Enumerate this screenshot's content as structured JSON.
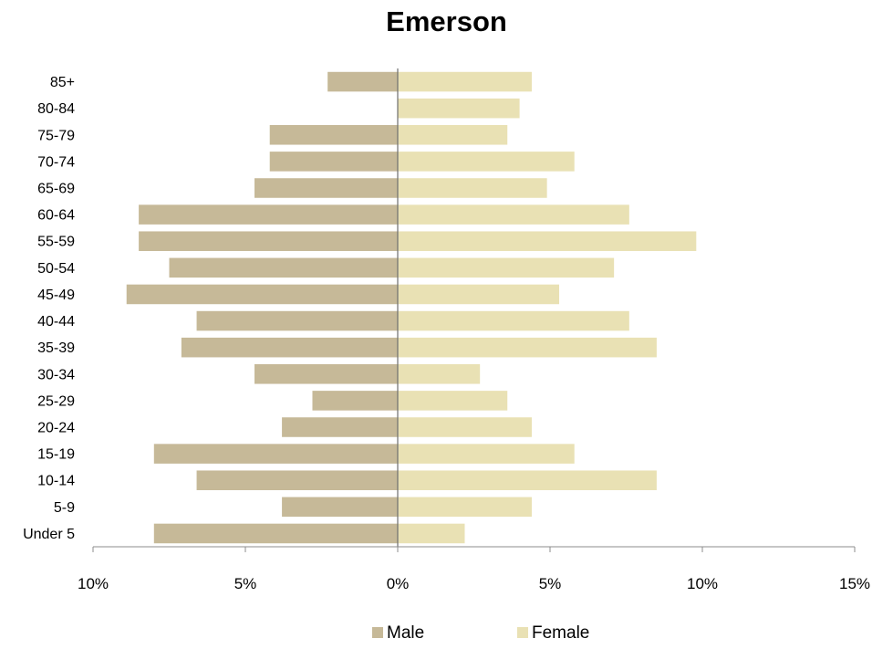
{
  "chart_data": {
    "type": "bar",
    "orientation": "horizontal",
    "title": "Emerson",
    "xlabel": "",
    "ylabel": "",
    "categories": [
      "Under 5",
      "5-9",
      "10-14",
      "15-19",
      "20-24",
      "25-29",
      "30-34",
      "35-39",
      "40-44",
      "45-49",
      "50-54",
      "55-59",
      "60-64",
      "65-69",
      "70-74",
      "75-79",
      "80-84",
      "85+"
    ],
    "series": [
      {
        "name": "Male",
        "color": "#c6b998",
        "direction": "left",
        "values": [
          8.0,
          3.8,
          6.6,
          8.0,
          3.8,
          2.8,
          4.7,
          7.1,
          6.6,
          8.9,
          7.5,
          8.5,
          8.5,
          4.7,
          4.2,
          4.2,
          0.0,
          2.3
        ]
      },
      {
        "name": "Female",
        "color": "#e9e1b4",
        "direction": "right",
        "values": [
          2.2,
          4.4,
          8.5,
          5.8,
          4.4,
          3.6,
          2.7,
          8.5,
          7.6,
          5.3,
          7.1,
          9.8,
          7.6,
          4.9,
          5.8,
          3.6,
          4.0,
          4.4
        ]
      }
    ],
    "xlim": [
      -10,
      15
    ],
    "xticks": [
      -10,
      -5,
      0,
      5,
      10,
      15
    ],
    "xtick_labels": [
      "10%",
      "5%",
      "0%",
      "5%",
      "10%",
      "15%"
    ],
    "grid": false,
    "legend_position": "bottom"
  }
}
